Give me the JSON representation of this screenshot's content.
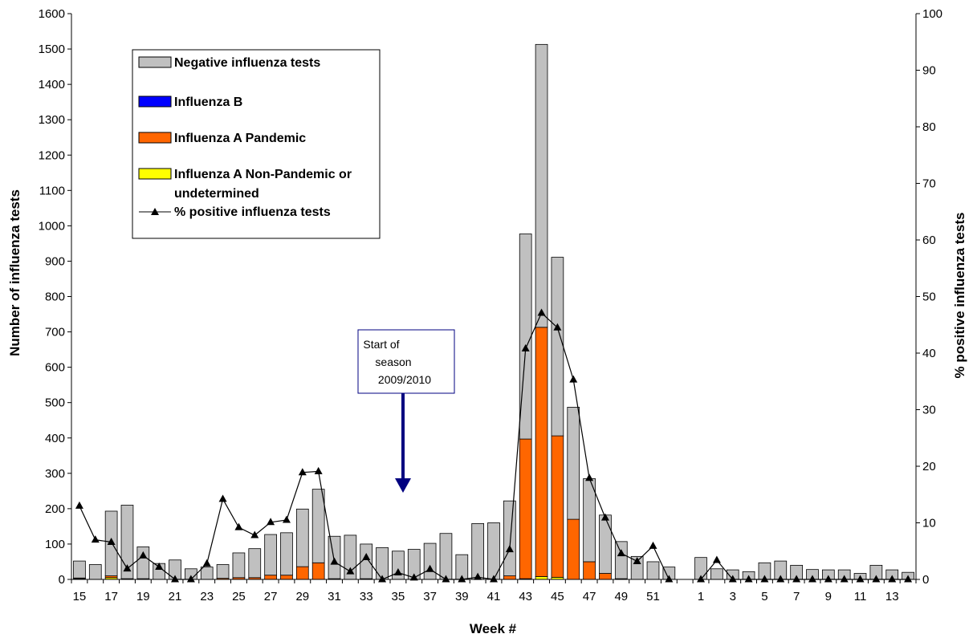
{
  "chart_data": {
    "type": "bar",
    "stacked": true,
    "title": "",
    "xlabel": "Week #",
    "ylabel": "Number of influenza tests",
    "y2label": "% positive influenza tests",
    "ylim": [
      0,
      1600
    ],
    "y2lim": [
      0,
      100
    ],
    "y_ticks": [
      "0",
      "100",
      "200",
      "300",
      "400",
      "500",
      "600",
      "700",
      "800",
      "900",
      "1000",
      "1100",
      "1200",
      "1300",
      "1400",
      "1500",
      "1600"
    ],
    "y2_ticks": [
      "0",
      "10",
      "20",
      "30",
      "40",
      "50",
      "60",
      "70",
      "80",
      "90",
      "100"
    ],
    "x_tick_labels": [
      "15",
      "17",
      "19",
      "21",
      "23",
      "25",
      "27",
      "29",
      "31",
      "33",
      "35",
      "37",
      "39",
      "41",
      "43",
      "45",
      "47",
      "49",
      "51",
      "1",
      "3",
      "5",
      "7",
      "9",
      "11",
      "13"
    ],
    "grid": false,
    "legend_position": "top-left",
    "categories": [
      "15",
      "16",
      "17",
      "18",
      "19",
      "20",
      "21",
      "22",
      "23",
      "24",
      "25",
      "26",
      "27",
      "28",
      "29",
      "30",
      "31",
      "32",
      "33",
      "34",
      "35",
      "36",
      "37",
      "38",
      "39",
      "40",
      "41",
      "42",
      "43",
      "44",
      "45",
      "46",
      "47",
      "48",
      "49",
      "50",
      "51",
      "52",
      "53",
      "1",
      "2",
      "3",
      "4",
      "5",
      "6",
      "7",
      "8",
      "9",
      "10",
      "11",
      "12",
      "13",
      "14"
    ],
    "series": [
      {
        "name": "Influenza A Non-Pandemic or undetermined",
        "color": "#ffff00",
        "kind": "bar",
        "values": [
          2,
          0,
          5,
          0,
          0,
          0,
          0,
          0,
          0,
          0,
          0,
          0,
          0,
          0,
          0,
          0,
          0,
          0,
          0,
          0,
          0,
          0,
          0,
          0,
          0,
          0,
          0,
          0,
          2,
          8,
          6,
          0,
          0,
          0,
          0,
          0,
          0,
          0,
          0,
          0,
          0,
          0,
          0,
          0,
          0,
          0,
          0,
          0,
          0,
          0,
          0,
          0,
          0
        ]
      },
      {
        "name": "Influenza A Pandemic",
        "color": "#ff6600",
        "kind": "bar",
        "values": [
          2,
          0,
          5,
          2,
          2,
          0,
          0,
          0,
          0,
          3,
          5,
          5,
          12,
          12,
          36,
          47,
          2,
          0,
          2,
          0,
          0,
          0,
          0,
          0,
          0,
          0,
          0,
          10,
          395,
          705,
          400,
          170,
          50,
          17,
          2,
          0,
          0,
          0,
          0,
          0,
          0,
          0,
          0,
          0,
          0,
          0,
          0,
          0,
          0,
          0,
          0,
          0,
          0
        ]
      },
      {
        "name": "Influenza B",
        "color": "#0000ff",
        "kind": "bar",
        "values": [
          0,
          0,
          0,
          0,
          0,
          0,
          0,
          0,
          0,
          0,
          0,
          0,
          0,
          0,
          0,
          0,
          0,
          0,
          0,
          0,
          0,
          0,
          0,
          0,
          0,
          0,
          0,
          0,
          0,
          0,
          0,
          0,
          0,
          0,
          0,
          0,
          0,
          0,
          0,
          0,
          0,
          0,
          0,
          0,
          0,
          0,
          0,
          0,
          0,
          0,
          0,
          0,
          0
        ]
      },
      {
        "name": "Negative influenza tests",
        "color": "#c0c0c0",
        "kind": "bar",
        "values": [
          48,
          42,
          183,
          208,
          90,
          45,
          55,
          30,
          35,
          39,
          70,
          82,
          115,
          120,
          163,
          208,
          120,
          125,
          98,
          90,
          80,
          85,
          102,
          130,
          70,
          158,
          160,
          212,
          580,
          800,
          505,
          317,
          235,
          165,
          105,
          65,
          50,
          35,
          0,
          62,
          30,
          27,
          22,
          47,
          52,
          40,
          28,
          27,
          27,
          17,
          40,
          27,
          20
        ]
      },
      {
        "name": "% positive influenza tests",
        "color": "#000000",
        "kind": "line",
        "axis": "y2",
        "marker": "triangle",
        "values": [
          13,
          7,
          6.6,
          1.9,
          4.2,
          2.2,
          0,
          0,
          2.8,
          14.2,
          9.2,
          7.8,
          10.1,
          10.5,
          18.9,
          19.1,
          3.1,
          1.4,
          3.9,
          0,
          1.2,
          0.3,
          1.8,
          0,
          0,
          0.4,
          0,
          5.3,
          40.8,
          47.1,
          44.5,
          35.3,
          17.9,
          10.9,
          4.6,
          3.2,
          5.9,
          0,
          null,
          0,
          3.4,
          0,
          0,
          0,
          0,
          0,
          0,
          0,
          0,
          0,
          0,
          0,
          0
        ]
      }
    ],
    "legend": [
      {
        "label": "Negative influenza tests",
        "color": "#c0c0c0",
        "kind": "box"
      },
      {
        "label": "Influenza B",
        "color": "#0000ff",
        "kind": "box"
      },
      {
        "label": "Influenza A Pandemic",
        "color": "#ff6600",
        "kind": "box"
      },
      {
        "label": "Influenza A Non-Pandemic or undetermined",
        "lines": [
          "Influenza A Non-Pandemic or",
          "undetermined"
        ],
        "color": "#ffff00",
        "kind": "box"
      },
      {
        "label": "% positive influenza tests",
        "color": "#000000",
        "kind": "line"
      }
    ],
    "annotations": [
      {
        "lines": [
          "Start of",
          "season",
          "2009/2010"
        ],
        "arrow_color": "#000080",
        "points_to_week": "35"
      }
    ]
  }
}
